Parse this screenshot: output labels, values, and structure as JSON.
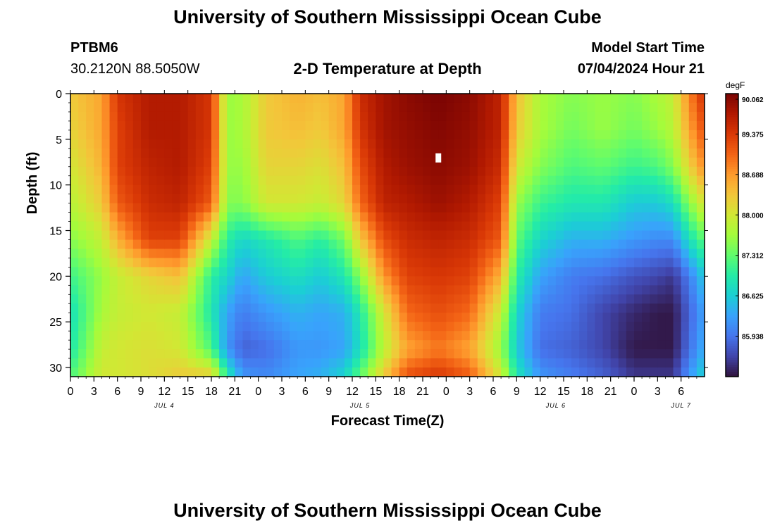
{
  "header": {
    "title": "University of Southern Mississippi Ocean Cube",
    "station": "PTBM6",
    "location": "30.2120N  88.5050W",
    "subtitle": "2-D Temperature at Depth",
    "model_label": "Model Start Time",
    "model_time": "07/04/2024 Hour 21"
  },
  "footer": {
    "title": "University of Southern Mississippi Ocean Cube"
  },
  "colors": {
    "palette": [
      "#30123b",
      "#4145ab",
      "#4675ed",
      "#39a2fc",
      "#1bcfd4",
      "#24eca6",
      "#61fc6c",
      "#a4fc3b",
      "#d1e834",
      "#f3c63a",
      "#fe9b2d",
      "#f36315",
      "#d93806",
      "#b11901",
      "#7a0403"
    ]
  },
  "chart_data": {
    "type": "heatmap",
    "title": "2-D Temperature at Depth",
    "xlabel": "Forecast Time(Z)",
    "ylabel": "Depth (ft)",
    "x_hours": [
      0,
      81
    ],
    "y_depth_ft": [
      0,
      31
    ],
    "x_tick_labels": [
      "0",
      "3",
      "6",
      "9",
      "12",
      "15",
      "18",
      "21",
      "0",
      "3",
      "6",
      "9",
      "12",
      "15",
      "18",
      "21",
      "0",
      "3",
      "6",
      "9",
      "12",
      "15",
      "18",
      "21",
      "0",
      "3",
      "6"
    ],
    "y_tick_values": [
      0,
      5,
      10,
      15,
      20,
      25,
      30
    ],
    "y_tick_labels": [
      "0",
      "5",
      "10",
      "15",
      "20",
      "25",
      "30"
    ],
    "day_labels": [
      {
        "label": "JUL 4",
        "hour": 12
      },
      {
        "label": "JUL 5",
        "hour": 37
      },
      {
        "label": "JUL 6",
        "hour": 62
      },
      {
        "label": "JUL 7",
        "hour": 78
      }
    ],
    "colorbar": {
      "unit": "degF",
      "min": 85.25,
      "max": 90.062,
      "tick_values": [
        90.062,
        89.375,
        88.688,
        88.0,
        87.312,
        86.625,
        85.938
      ],
      "tick_labels": [
        "90.062",
        "89.375",
        "88.688",
        "88.000",
        "87.312",
        "86.625",
        "85.938"
      ]
    },
    "grid": false,
    "marker": {
      "hour": 47,
      "depth_ft": 7
    },
    "profile_depths_ft": [
      0,
      4,
      8,
      12,
      16,
      20,
      24,
      28,
      31
    ],
    "profiles_degF": [
      {
        "hour": 0,
        "values": [
          88.3,
          88.2,
          88.0,
          87.8,
          87.5,
          87.1,
          86.8,
          86.9,
          87.2
        ]
      },
      {
        "hour": 4,
        "values": [
          88.6,
          88.6,
          88.5,
          88.3,
          87.9,
          87.6,
          87.7,
          87.9,
          88.0
        ]
      },
      {
        "hour": 6,
        "values": [
          89.4,
          89.3,
          89.3,
          89.1,
          88.5,
          87.9,
          87.9,
          88.0,
          88.0
        ]
      },
      {
        "hour": 10,
        "values": [
          89.7,
          89.7,
          89.6,
          89.5,
          89.3,
          88.2,
          88.0,
          88.1,
          88.1
        ]
      },
      {
        "hour": 14,
        "values": [
          89.7,
          89.7,
          89.7,
          89.6,
          89.3,
          88.4,
          87.9,
          88.0,
          88.3
        ]
      },
      {
        "hour": 18,
        "values": [
          89.4,
          89.4,
          89.3,
          89.1,
          87.9,
          87.0,
          86.9,
          87.2,
          88.3
        ]
      },
      {
        "hour": 20,
        "values": [
          87.6,
          87.6,
          87.6,
          87.5,
          87.0,
          86.7,
          86.3,
          86.2,
          87.0
        ]
      },
      {
        "hour": 22,
        "values": [
          87.7,
          87.7,
          87.6,
          87.5,
          86.7,
          86.3,
          86.0,
          85.8,
          86.2
        ]
      },
      {
        "hour": 25,
        "values": [
          88.3,
          88.3,
          88.2,
          88.0,
          86.9,
          86.6,
          86.2,
          85.9,
          86.1
        ]
      },
      {
        "hour": 29,
        "values": [
          88.5,
          88.4,
          88.2,
          88.0,
          87.2,
          86.8,
          86.4,
          86.2,
          86.3
        ]
      },
      {
        "hour": 32,
        "values": [
          88.4,
          88.3,
          88.1,
          87.9,
          87.0,
          86.6,
          86.3,
          86.2,
          86.4
        ]
      },
      {
        "hour": 35,
        "values": [
          88.6,
          88.6,
          88.4,
          88.2,
          87.4,
          86.9,
          86.4,
          86.3,
          86.7
        ]
      },
      {
        "hour": 37,
        "values": [
          89.5,
          89.4,
          89.2,
          89.0,
          88.3,
          87.5,
          86.9,
          86.8,
          87.3
        ]
      },
      {
        "hour": 40,
        "values": [
          89.8,
          89.8,
          89.7,
          89.6,
          89.2,
          88.7,
          88.0,
          87.8,
          88.3
        ]
      },
      {
        "hour": 43,
        "values": [
          89.95,
          89.9,
          89.85,
          89.7,
          89.5,
          89.3,
          89.0,
          88.6,
          89.2
        ]
      },
      {
        "hour": 47,
        "values": [
          90.06,
          90.0,
          89.95,
          89.85,
          89.6,
          89.4,
          89.2,
          88.9,
          89.4
        ]
      },
      {
        "hour": 51,
        "values": [
          89.95,
          89.9,
          89.85,
          89.7,
          89.5,
          89.3,
          89.0,
          88.6,
          89.1
        ]
      },
      {
        "hour": 55,
        "values": [
          89.6,
          89.6,
          89.5,
          89.3,
          89.1,
          88.5,
          87.9,
          87.6,
          88.0
        ]
      },
      {
        "hour": 57,
        "values": [
          88.4,
          88.3,
          88.0,
          87.6,
          87.3,
          87.0,
          86.7,
          86.6,
          86.9
        ]
      },
      {
        "hour": 60,
        "values": [
          87.7,
          87.7,
          87.5,
          87.1,
          86.7,
          86.3,
          86.0,
          85.9,
          86.2
        ]
      },
      {
        "hour": 64,
        "values": [
          87.5,
          87.4,
          87.2,
          86.9,
          86.4,
          86.0,
          85.9,
          85.8,
          86.0
        ]
      },
      {
        "hour": 68,
        "values": [
          87.6,
          87.6,
          87.3,
          86.9,
          86.4,
          85.9,
          85.6,
          85.6,
          85.8
        ]
      },
      {
        "hour": 72,
        "values": [
          87.5,
          87.4,
          87.1,
          86.6,
          86.2,
          85.7,
          85.4,
          85.3,
          85.5
        ]
      },
      {
        "hour": 75,
        "values": [
          87.7,
          87.6,
          87.2,
          86.6,
          86.1,
          85.6,
          85.3,
          85.3,
          85.5
        ]
      },
      {
        "hour": 77,
        "values": [
          87.9,
          87.8,
          87.5,
          86.8,
          86.1,
          85.5,
          85.3,
          85.3,
          85.5
        ]
      },
      {
        "hour": 79,
        "values": [
          88.8,
          88.6,
          88.2,
          87.5,
          86.8,
          86.0,
          85.8,
          85.9,
          86.2
        ]
      },
      {
        "hour": 81,
        "values": [
          89.5,
          89.2,
          88.8,
          88.1,
          87.3,
          86.6,
          86.3,
          86.4,
          86.7
        ]
      }
    ]
  }
}
